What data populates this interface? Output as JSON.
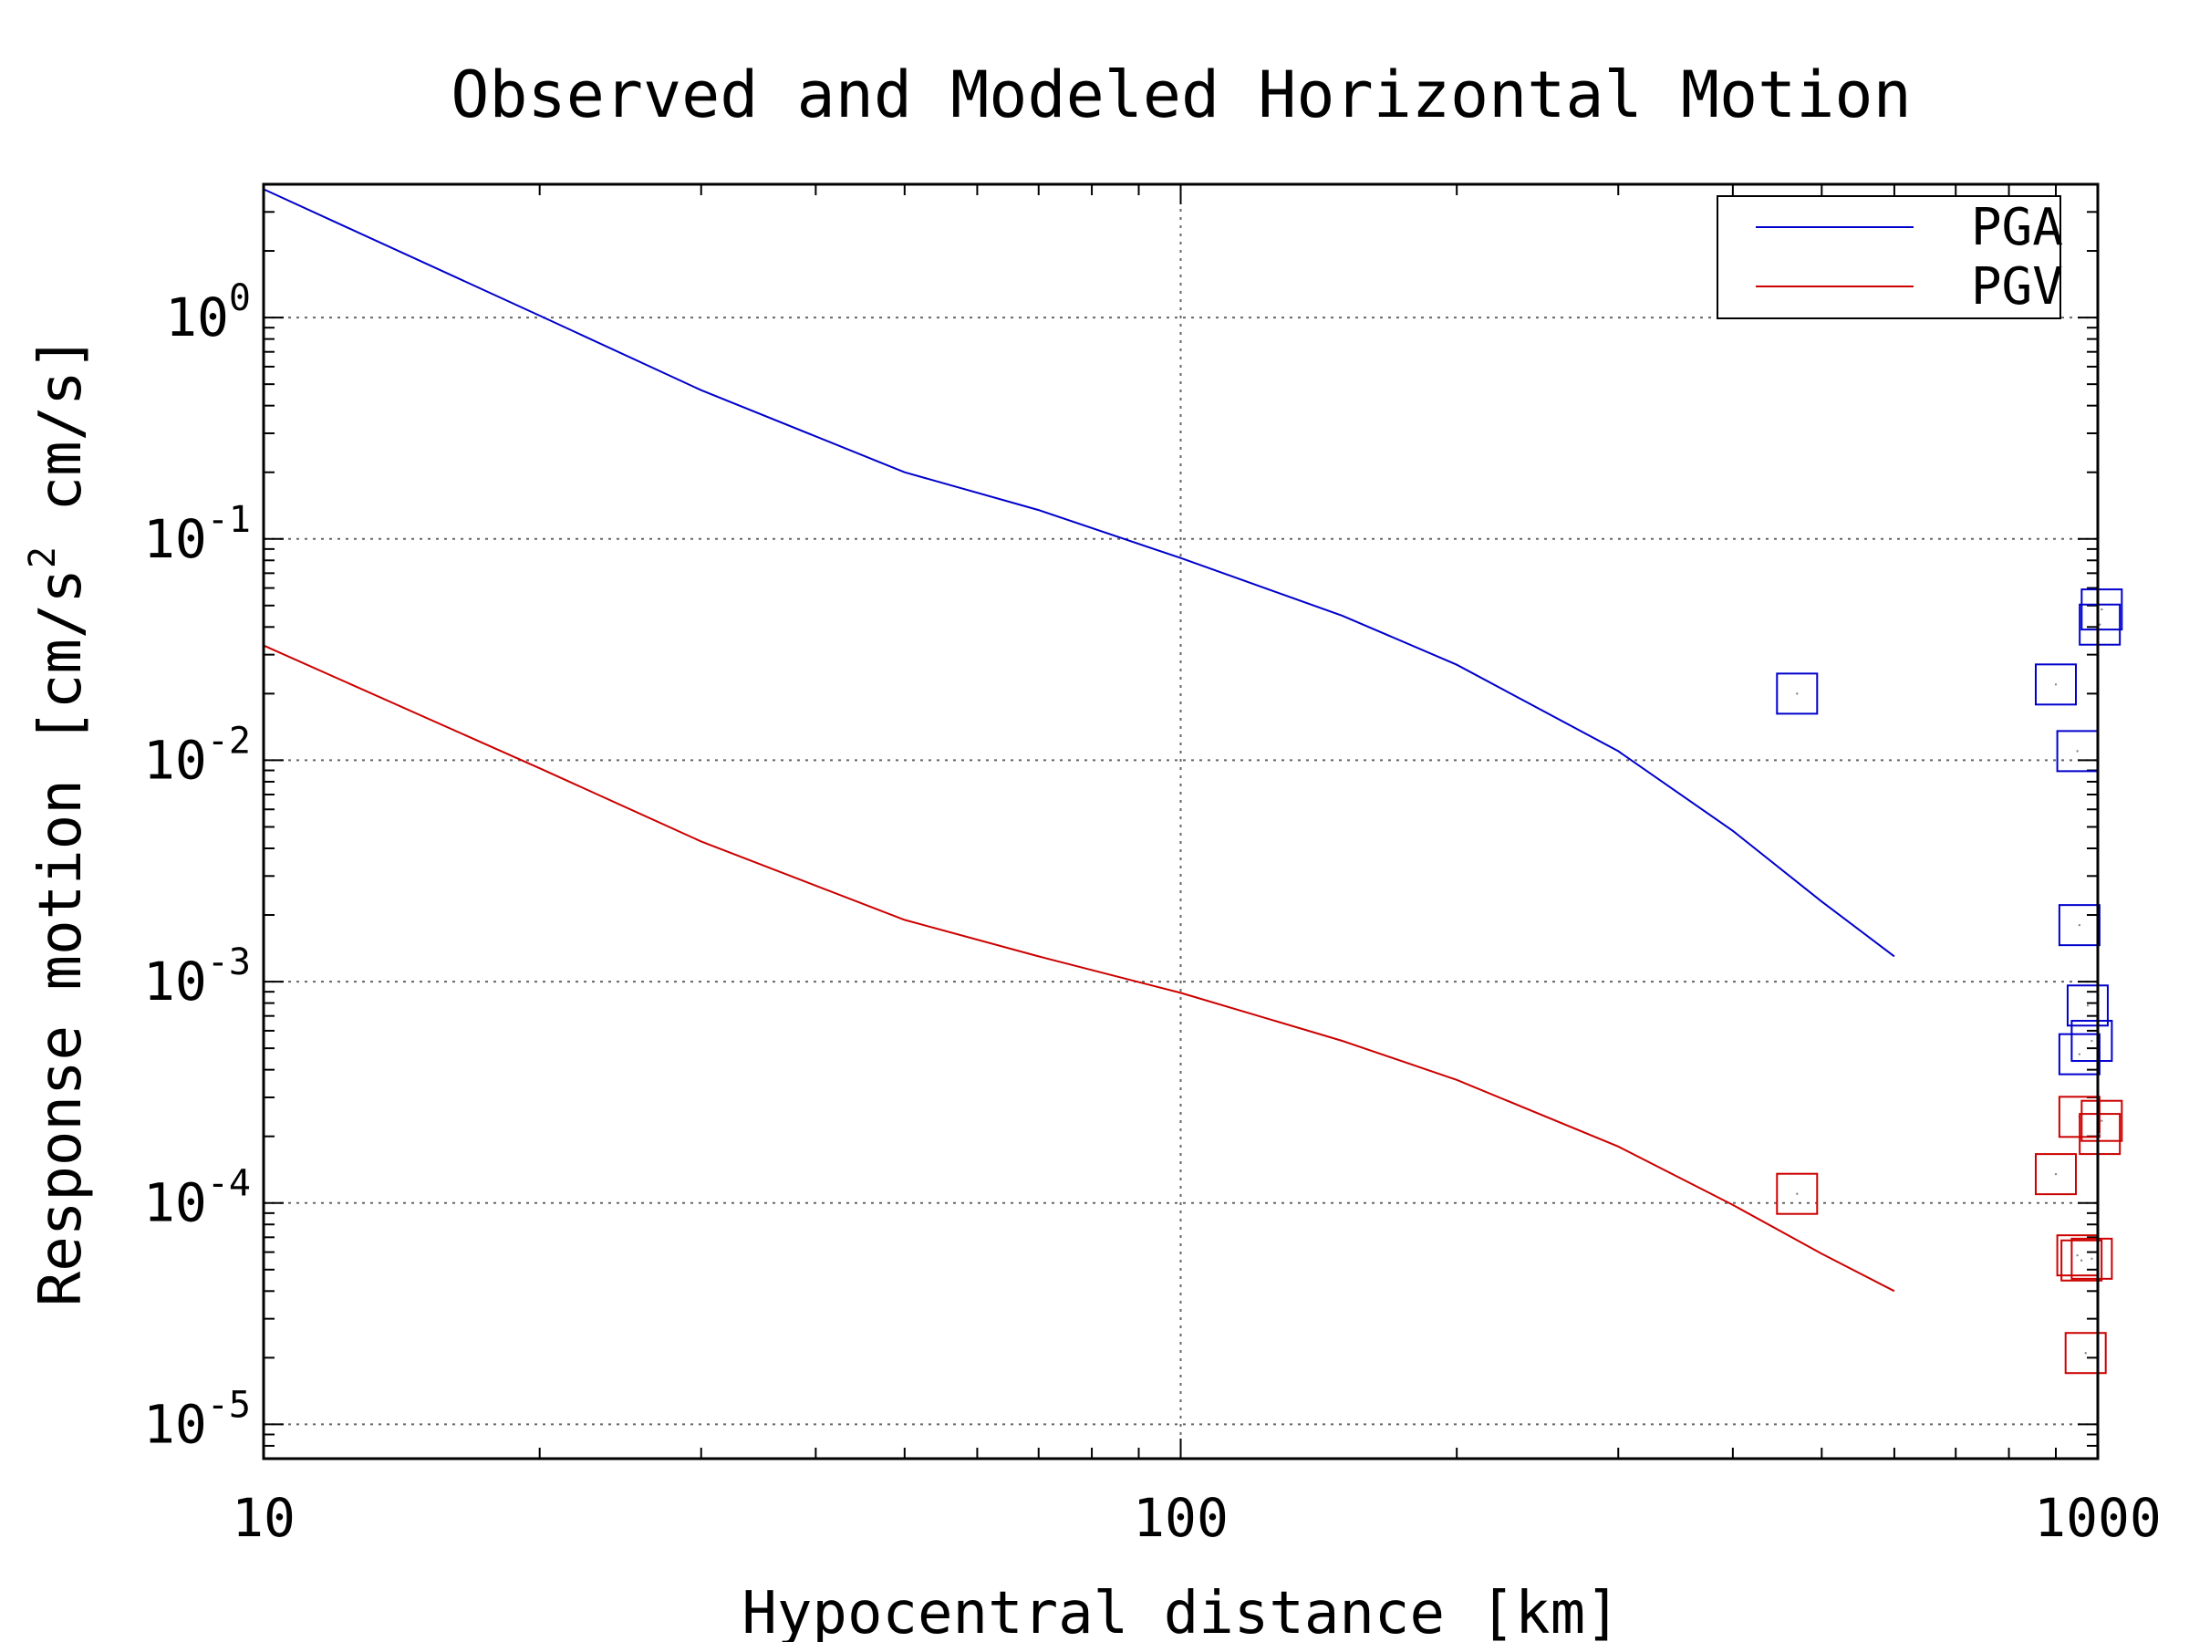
{
  "chart_data": {
    "type": "line",
    "title": "Observed and Modeled Horizontal Motion",
    "xlabel": "Hypocentral distance [km]",
    "ylabel": {
      "prefix": "Response motion [cm/s",
      "superscript": "2",
      "suffix": " cm/s]"
    },
    "xscale": "log",
    "yscale": "log",
    "xlim": [
      10,
      1000
    ],
    "ylim": [
      7e-06,
      4
    ],
    "grid": true,
    "legend_position": "top-right",
    "x_ticks": [
      {
        "value": 10,
        "label": "10"
      },
      {
        "value": 100,
        "label": "100"
      },
      {
        "value": 1000,
        "label": "1000"
      }
    ],
    "y_ticks": [
      {
        "value": 1,
        "base": "10",
        "exp": "0"
      },
      {
        "value": 0.1,
        "base": "10",
        "exp": "-1"
      },
      {
        "value": 0.01,
        "base": "10",
        "exp": "-2"
      },
      {
        "value": 0.001,
        "base": "10",
        "exp": "-3"
      },
      {
        "value": 0.0001,
        "base": "10",
        "exp": "-4"
      },
      {
        "value": 1e-05,
        "base": "10",
        "exp": "-5"
      }
    ],
    "series": [
      {
        "name": "PGA",
        "color": "#0000cc",
        "kind": "line",
        "x": [
          10,
          20,
          30,
          50,
          70,
          100,
          150,
          200,
          300,
          400,
          500,
          600
        ],
        "y": [
          3.8,
          1.02,
          0.47,
          0.2,
          0.135,
          0.082,
          0.045,
          0.027,
          0.011,
          0.0048,
          0.0023,
          0.0013
        ]
      },
      {
        "name": "PGV",
        "color": "#cc0000",
        "kind": "line",
        "x": [
          10,
          20,
          30,
          50,
          70,
          100,
          150,
          200,
          300,
          400,
          500,
          600
        ],
        "y": [
          0.033,
          0.0092,
          0.0043,
          0.0019,
          0.0013,
          0.00089,
          0.00054,
          0.00036,
          0.00018,
          9.8e-05,
          5.9e-05,
          4e-05
        ]
      }
    ],
    "observed": [
      {
        "series": "PGA",
        "color": "#0000cc",
        "points": [
          {
            "x": 470,
            "y": 0.02
          },
          {
            "x": 900,
            "y": 0.022
          },
          {
            "x": 950,
            "y": 0.011
          },
          {
            "x": 1010,
            "y": 0.048
          },
          {
            "x": 1005,
            "y": 0.041
          },
          {
            "x": 955,
            "y": 0.0018
          },
          {
            "x": 975,
            "y": 0.00078
          },
          {
            "x": 985,
            "y": 0.00054
          },
          {
            "x": 955,
            "y": 0.00047
          }
        ]
      },
      {
        "series": "PGV",
        "color": "#cc0000",
        "points": [
          {
            "x": 470,
            "y": 0.00011
          },
          {
            "x": 900,
            "y": 0.000135
          },
          {
            "x": 955,
            "y": 0.000245
          },
          {
            "x": 1010,
            "y": 0.000235
          },
          {
            "x": 1005,
            "y": 0.000205
          },
          {
            "x": 950,
            "y": 5.8e-05
          },
          {
            "x": 960,
            "y": 5.5e-05
          },
          {
            "x": 985,
            "y": 5.6e-05
          },
          {
            "x": 970,
            "y": 2.1e-05
          }
        ]
      }
    ]
  }
}
